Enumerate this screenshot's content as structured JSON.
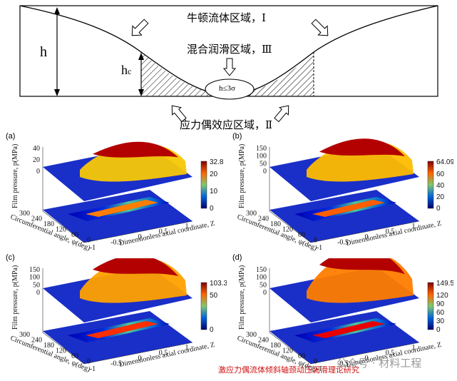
{
  "schematic": {
    "region_1": "牛顿流体区域，Ⅰ",
    "region_3": "混合润滑区域，Ⅲ",
    "region_2": "应力偶效应区域，Ⅱ",
    "h_label": "h",
    "hc_label": "h",
    "hc_sub": "c",
    "contact_label": "h≤3σ"
  },
  "panels": [
    {
      "id": "a",
      "tag": "(a)",
      "max_label": "32.8",
      "z_ticks": [
        "40",
        "20",
        "0"
      ],
      "cb_ticks": [
        "20",
        "10",
        "0"
      ],
      "peak_rel": 0.34
    },
    {
      "id": "b",
      "tag": "(b)",
      "max_label": "64.09",
      "z_ticks": [
        "150",
        "100",
        "50",
        "0"
      ],
      "cb_ticks": [
        "60",
        "40",
        "20",
        "0"
      ],
      "peak_rel": 0.45
    },
    {
      "id": "c",
      "tag": "(c)",
      "max_label": "103.3",
      "z_ticks": [
        "150",
        "100",
        "50",
        "0"
      ],
      "cb_ticks": [
        "50",
        "0"
      ],
      "peak_rel": 0.62
    },
    {
      "id": "d",
      "tag": "(d)",
      "max_label": "149.5",
      "z_ticks": [
        "150",
        "100",
        "50",
        "0"
      ],
      "cb_ticks": [
        "120",
        "90",
        "60",
        "30",
        "0"
      ],
      "peak_rel": 0.85
    }
  ],
  "axes": {
    "z_label": "Film pressure, p(MPa)",
    "y_label": "Circumferential angle, ψ(deg)",
    "x_label": "Dimensionless axial coordinate, Z",
    "y_ticks": [
      "300",
      "240",
      "180",
      "120",
      "60",
      "0"
    ],
    "x_ticks": [
      "-1",
      "-0.5",
      "0",
      "0.5",
      "1"
    ]
  },
  "colors": {
    "floor": "#1830c8",
    "hot": "#c80000",
    "caption": "#d01010"
  },
  "caption": "激应力偶流体倾斜轴颈动压润滑理论研究",
  "watermark": "公众号 · 材料工程"
}
